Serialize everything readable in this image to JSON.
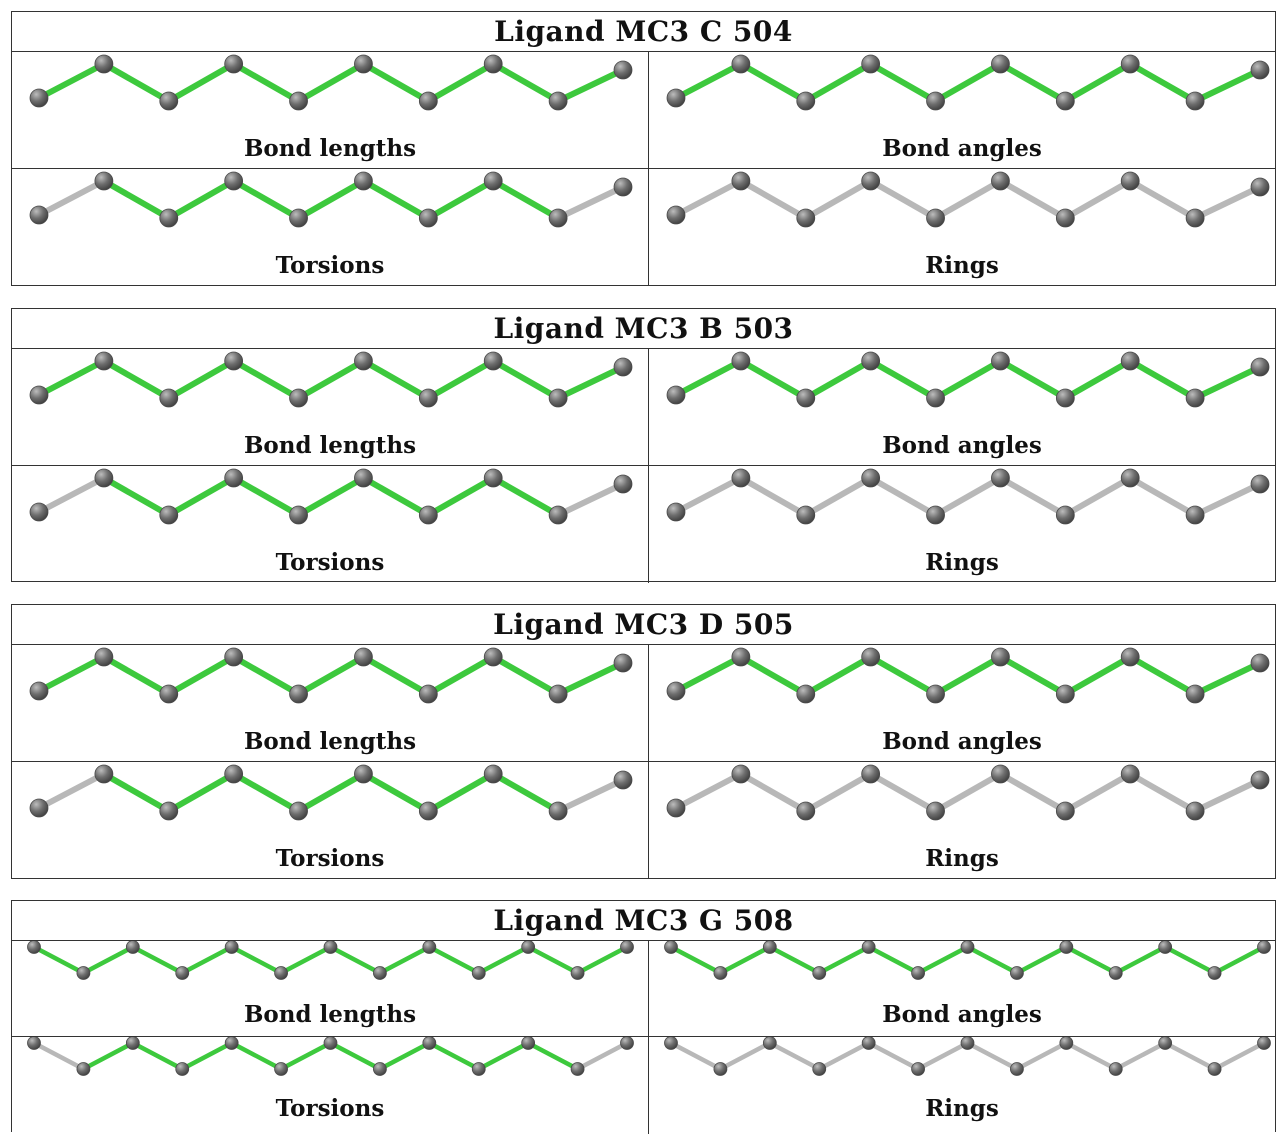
{
  "ligands": [
    {
      "title": "Ligand MC3 C 504",
      "panels": [
        {
          "label": "Bond lengths",
          "color_mask": [
            1,
            1,
            1,
            1,
            1,
            1,
            1,
            1,
            1
          ]
        },
        {
          "label": "Bond angles",
          "color_mask": [
            1,
            1,
            1,
            1,
            1,
            1,
            1,
            1,
            1
          ]
        },
        {
          "label": "Torsions",
          "color_mask": [
            0,
            1,
            1,
            1,
            1,
            1,
            1,
            1,
            0
          ]
        },
        {
          "label": "Rings",
          "color_mask": [
            0,
            0,
            0,
            0,
            0,
            0,
            0,
            0,
            0
          ]
        }
      ]
    },
    {
      "title": "Ligand MC3 B 503",
      "panels": [
        {
          "label": "Bond lengths",
          "color_mask": [
            1,
            1,
            1,
            1,
            1,
            1,
            1,
            1,
            1
          ]
        },
        {
          "label": "Bond angles",
          "color_mask": [
            1,
            1,
            1,
            1,
            1,
            1,
            1,
            1,
            1
          ]
        },
        {
          "label": "Torsions",
          "color_mask": [
            0,
            1,
            1,
            1,
            1,
            1,
            1,
            1,
            0
          ]
        },
        {
          "label": "Rings",
          "color_mask": [
            0,
            0,
            0,
            0,
            0,
            0,
            0,
            0,
            0
          ]
        }
      ]
    },
    {
      "title": "Ligand MC3 D 505",
      "panels": [
        {
          "label": "Bond lengths",
          "color_mask": [
            1,
            1,
            1,
            1,
            1,
            1,
            1,
            1,
            1
          ]
        },
        {
          "label": "Bond angles",
          "color_mask": [
            1,
            1,
            1,
            1,
            1,
            1,
            1,
            1,
            1
          ]
        },
        {
          "label": "Torsions",
          "color_mask": [
            0,
            1,
            1,
            1,
            1,
            1,
            1,
            1,
            0
          ]
        },
        {
          "label": "Rings",
          "color_mask": [
            0,
            0,
            0,
            0,
            0,
            0,
            0,
            0,
            0
          ]
        }
      ]
    },
    {
      "title": "Ligand MC3 G 508",
      "panels": [
        {
          "label": "Bond lengths",
          "color_mask": [
            1,
            1,
            1,
            1,
            1,
            1,
            1,
            1,
            1,
            1,
            1,
            1
          ]
        },
        {
          "label": "Bond angles",
          "color_mask": [
            1,
            1,
            1,
            1,
            1,
            1,
            1,
            1,
            1,
            1,
            1,
            1
          ]
        },
        {
          "label": "Torsions",
          "color_mask": [
            0,
            1,
            1,
            1,
            1,
            1,
            1,
            1,
            1,
            1,
            1,
            0
          ]
        },
        {
          "label": "Rings",
          "color_mask": [
            0,
            0,
            0,
            0,
            0,
            0,
            0,
            0,
            0,
            0,
            0,
            0
          ]
        }
      ]
    }
  ],
  "colors": {
    "pass_bond": "#3dc93d",
    "neutral_bond": "#b8b8b8",
    "atom": "#6e6e6e"
  }
}
